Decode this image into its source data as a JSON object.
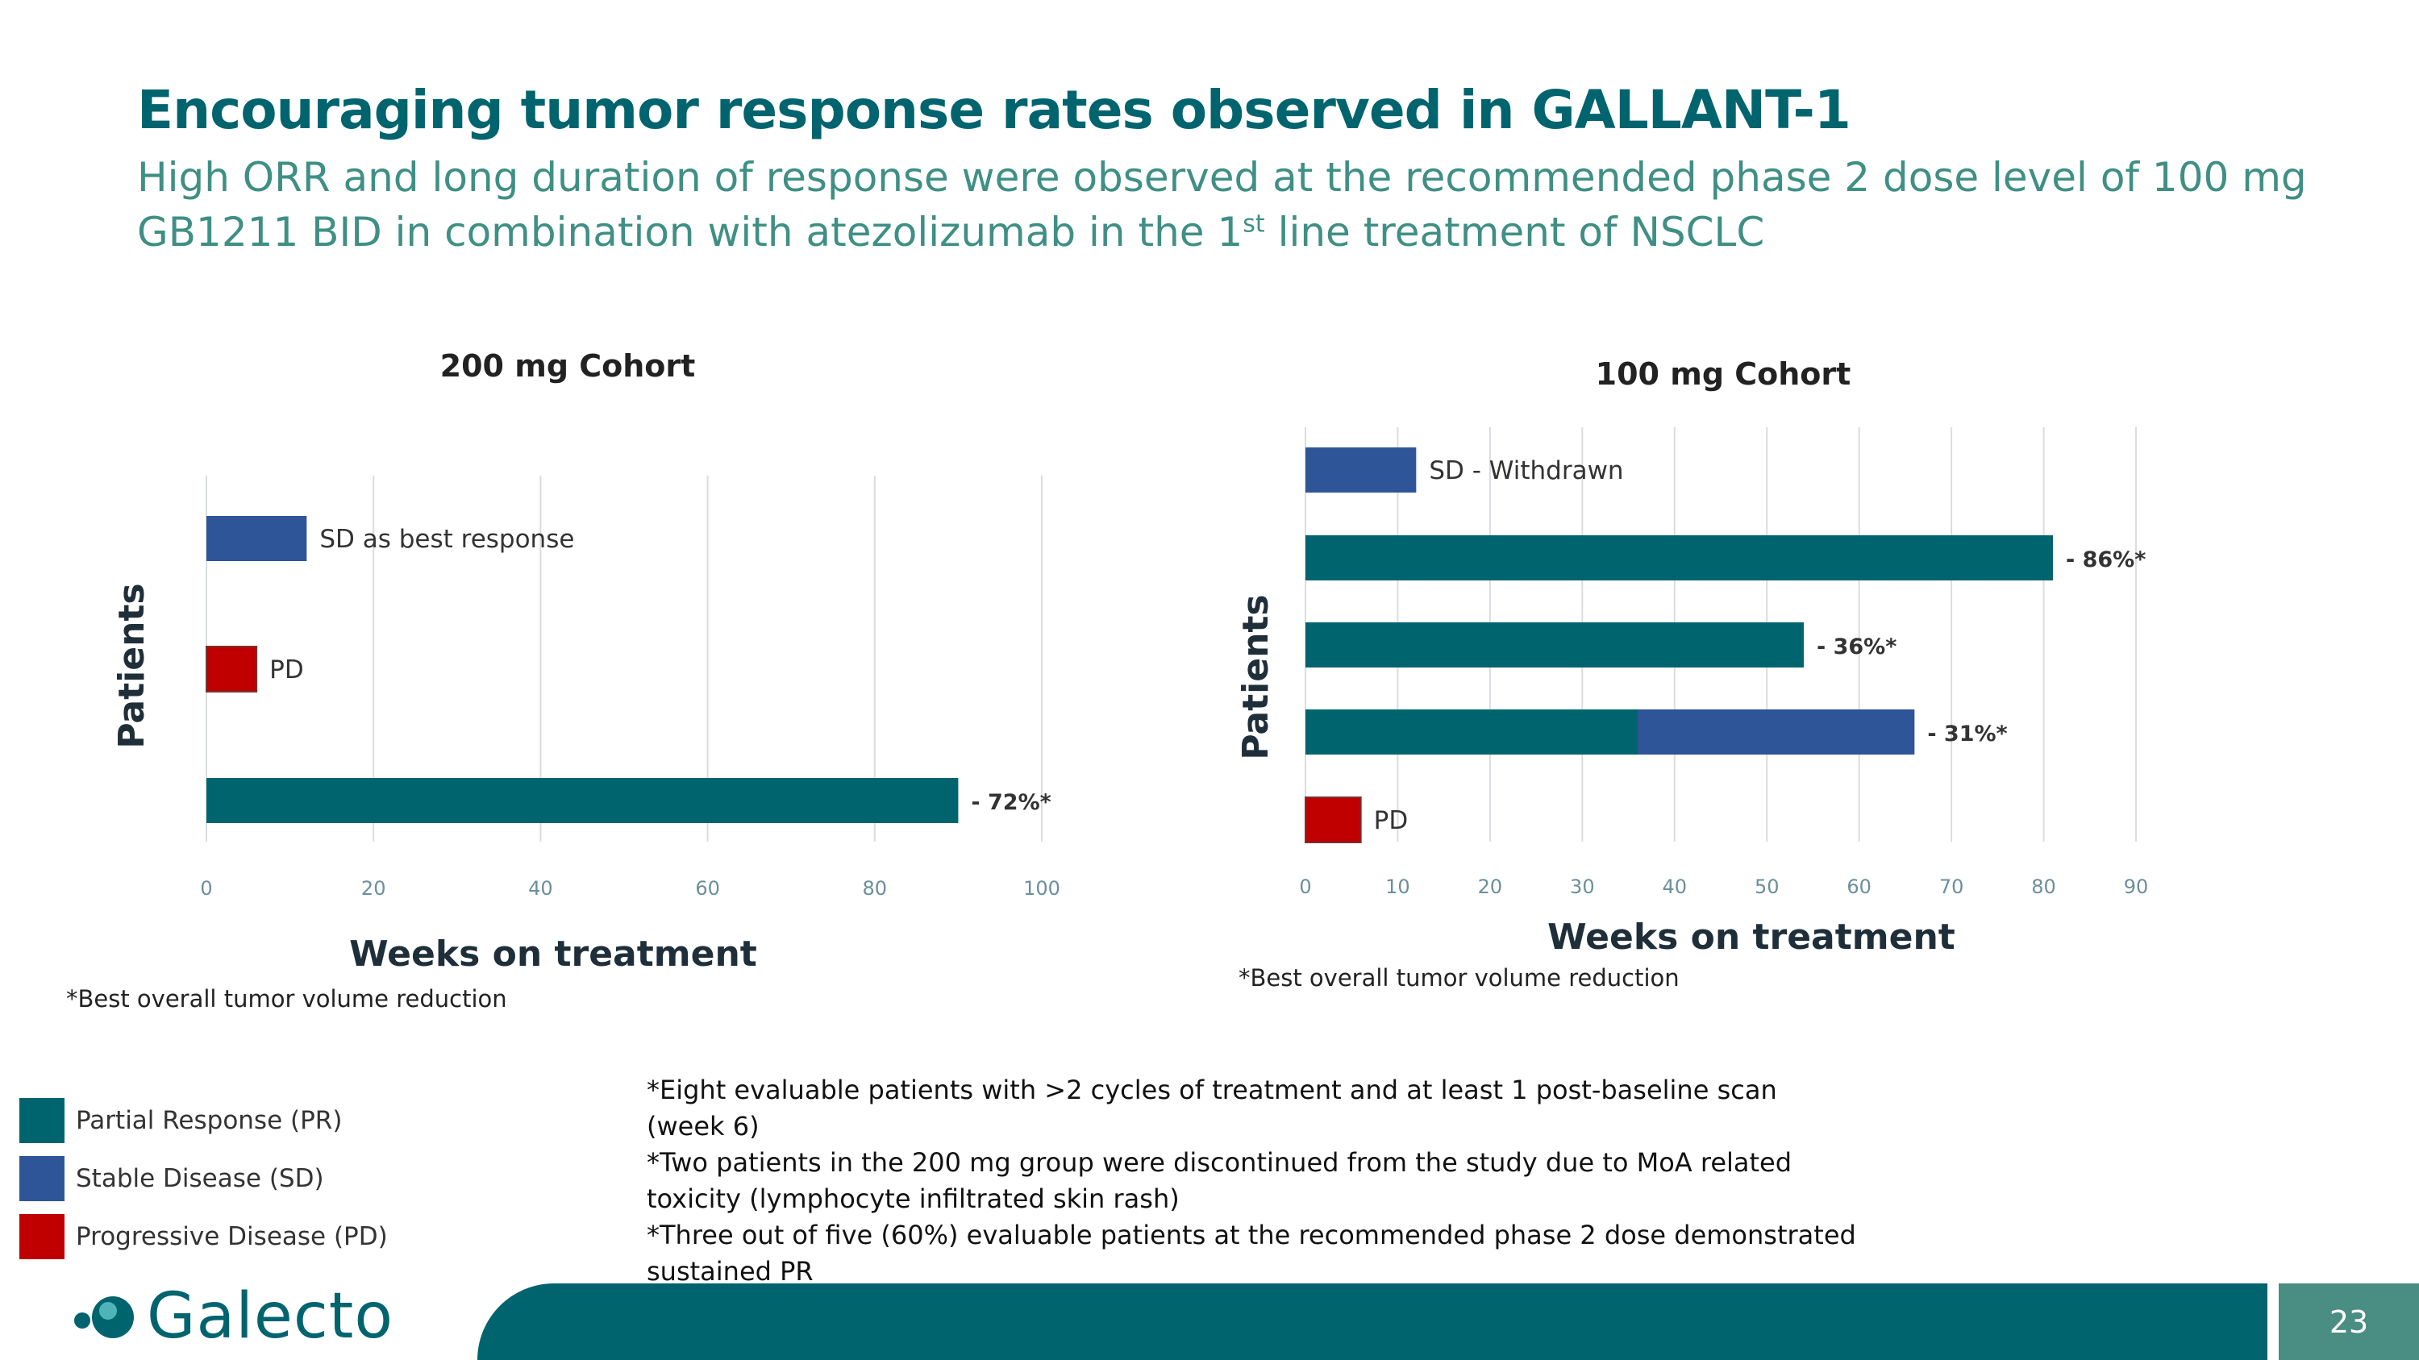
{
  "slide": {
    "title": "Encouraging tumor response rates observed in GALLANT-1",
    "subtitle_part1": "High ORR and long duration of response were observed at the recommended phase 2 dose level of 100 mg GB1211 BID in combination with atezolizumab in the 1",
    "subtitle_sup": "st",
    "subtitle_part2": " line treatment of NSCLC",
    "page_number": "23"
  },
  "colors": {
    "pr": "#00646e",
    "sd": "#2e5597",
    "pd": "#c00000",
    "grid": "#d9dde0",
    "tick": "#6b8f9c"
  },
  "chart_data": [
    {
      "type": "bar",
      "orientation": "horizontal",
      "stacked": true,
      "title": "200 mg Cohort",
      "xlabel": "Weeks on treatment",
      "ylabel": "Patients",
      "xlim": [
        0,
        100
      ],
      "xticks": [
        0,
        20,
        40,
        60,
        80,
        100
      ],
      "footnote": "*Best overall tumor volume reduction",
      "bars": [
        {
          "segments": [
            {
              "type": "sd",
              "value": 12
            }
          ],
          "label": "SD as best response",
          "label_bold": false
        },
        {
          "segments": [
            {
              "type": "pd",
              "value": 6
            }
          ],
          "label": "PD",
          "label_bold": false
        },
        {
          "segments": [
            {
              "type": "pr",
              "value": 90
            }
          ],
          "label": "- 72%*",
          "label_bold": true
        }
      ]
    },
    {
      "type": "bar",
      "orientation": "horizontal",
      "stacked": true,
      "title": "100 mg Cohort",
      "xlabel": "Weeks on treatment",
      "ylabel": "Patients",
      "xlim": [
        0,
        90
      ],
      "xticks": [
        0,
        10,
        20,
        30,
        40,
        50,
        60,
        70,
        80,
        90
      ],
      "footnote": "*Best overall tumor volume reduction",
      "bars": [
        {
          "segments": [
            {
              "type": "sd",
              "value": 12
            }
          ],
          "label": "SD - Withdrawn",
          "label_bold": false
        },
        {
          "segments": [
            {
              "type": "pr",
              "value": 81
            }
          ],
          "label": "- 86%*",
          "label_bold": true
        },
        {
          "segments": [
            {
              "type": "pr",
              "value": 54
            }
          ],
          "label": "- 36%*",
          "label_bold": true
        },
        {
          "segments": [
            {
              "type": "pr",
              "value": 36
            },
            {
              "type": "sd",
              "value": 30
            }
          ],
          "label": "- 31%*",
          "label_bold": true
        },
        {
          "segments": [
            {
              "type": "pd",
              "value": 6
            }
          ],
          "label": "PD",
          "label_bold": false
        }
      ]
    }
  ],
  "legend": {
    "items": [
      {
        "key": "pr",
        "label": "Partial Response (PR)"
      },
      {
        "key": "sd",
        "label": "Stable Disease (SD)"
      },
      {
        "key": "pd",
        "label": "Progressive Disease (PD)"
      }
    ]
  },
  "notes": {
    "line1": "*Eight evaluable patients with >2 cycles of treatment and at least 1 post-baseline scan (week 6)",
    "line2": "*Two patients in the 200 mg group were discontinued from the study due to MoA related toxicity (lymphocyte infiltrated skin rash)",
    "line3": "*Three out of five (60%) evaluable patients at the recommended phase 2 dose demonstrated sustained PR"
  },
  "logo": {
    "text": "Galecto"
  }
}
